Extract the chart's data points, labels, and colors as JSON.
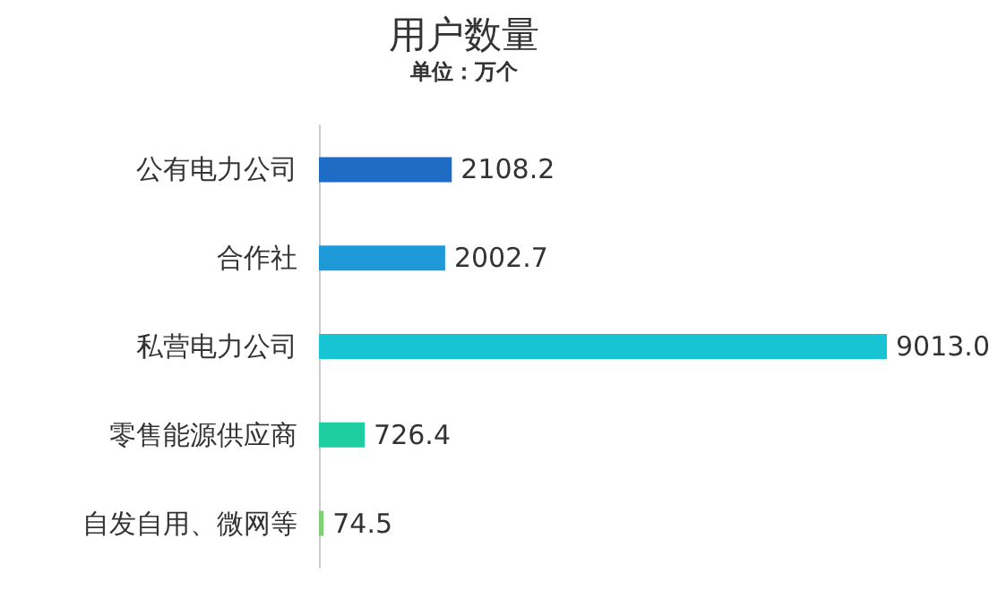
{
  "chart_data": {
    "type": "bar",
    "orientation": "horizontal",
    "title": "用户数量",
    "subtitle": "单位：万个",
    "categories": [
      "公有电力公司",
      "合作社",
      "私营电力公司",
      "零售能源供应商",
      "自发自用、微网等"
    ],
    "values": [
      2108.2,
      2002.7,
      9013.0,
      726.4,
      74.5
    ],
    "value_labels": [
      "2108.2",
      "2002.7",
      "9013.0",
      "726.4",
      "74.5"
    ],
    "colors": [
      "#1f6cc4",
      "#1f9ad8",
      "#17c4d4",
      "#1ecda0",
      "#7fcf74"
    ]
  }
}
